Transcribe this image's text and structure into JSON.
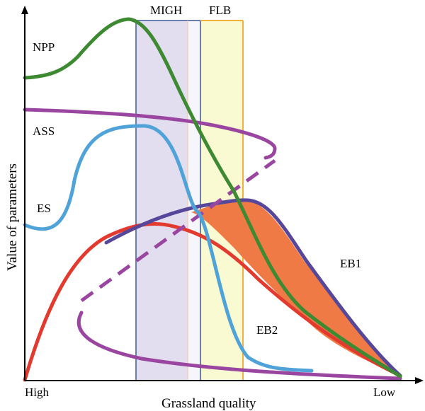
{
  "axes": {
    "x_label": "Grassland quality",
    "y_label": "Value of parameters",
    "x_low_end": "High",
    "x_high_end": "Low"
  },
  "bands": [
    {
      "label": "MIGH",
      "color": "#e2ddef",
      "border": "#6b7fae"
    },
    {
      "label": "FLB",
      "color": "#fafad2",
      "border": "#f2b13c"
    }
  ],
  "curves": {
    "npp": {
      "label": "NPP",
      "color": "#3d8a32"
    },
    "ass": {
      "label": "ASS",
      "color": "#9a46a0"
    },
    "es": {
      "label": "ES",
      "color": "#4fa3d8"
    },
    "eb1": {
      "label": "EB1",
      "color": "#56479a"
    },
    "eb2": {
      "label": "EB2",
      "color": "#e23a2e"
    }
  },
  "fill_color": "#ef7a45"
}
